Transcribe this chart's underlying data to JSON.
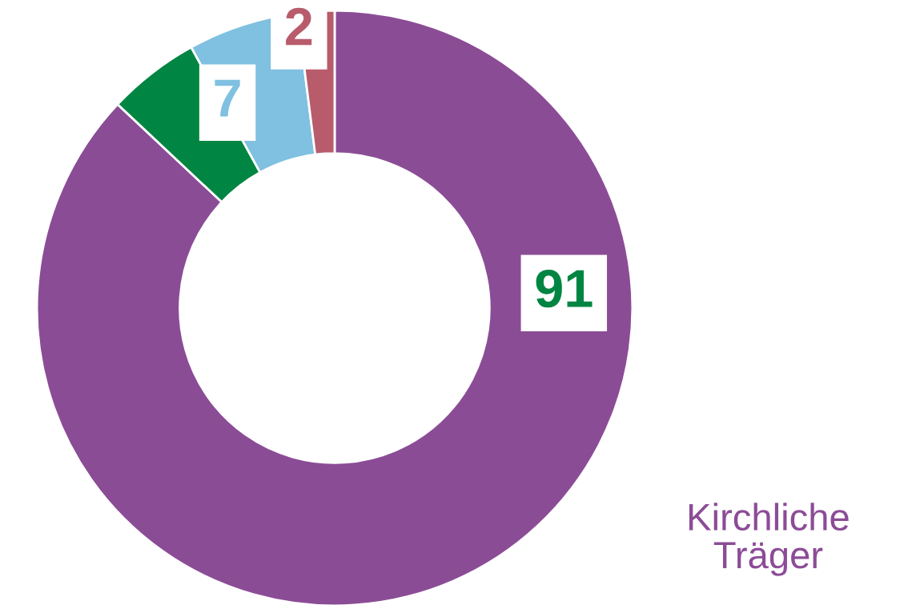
{
  "chart_data": {
    "type": "donut",
    "categories": [
      "Kirchliche Träger",
      null,
      null,
      null
    ],
    "values": [
      87,
      5,
      6,
      2
    ],
    "colors": [
      "#8b4c96",
      "#008542",
      "#80c0e0",
      "#b85c6c"
    ],
    "annotations": [
      "91",
      "7",
      "2"
    ]
  }
}
